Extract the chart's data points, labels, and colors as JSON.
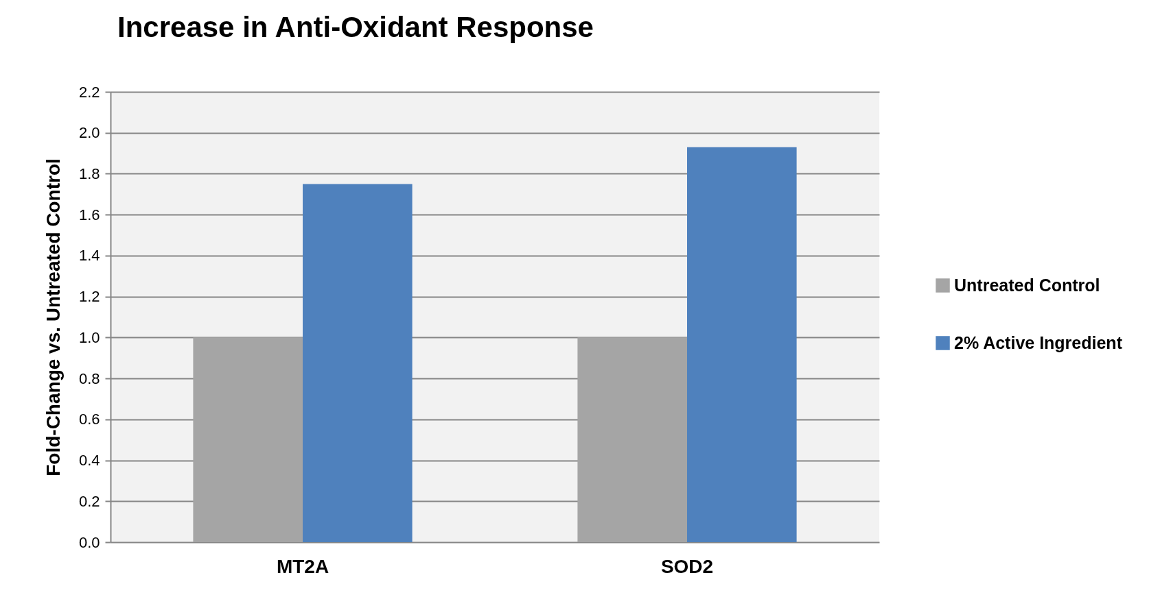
{
  "chart_data": {
    "type": "bar",
    "title": "Increase in Anti-Oxidant Response",
    "ylabel": "Fold-Change vs. Untreated Control",
    "categories": [
      "MT2A",
      "SOD2"
    ],
    "series": [
      {
        "name": "Untreated Control",
        "color": "#a5a5a5",
        "values": [
          1.0,
          1.0
        ]
      },
      {
        "name": "2% Active Ingredient",
        "color": "#4f81bd",
        "values": [
          1.75,
          1.93
        ]
      }
    ],
    "ylim": [
      0,
      2.2
    ],
    "yticks": [
      {
        "value": 0,
        "label": "0.0"
      },
      0.2,
      0.4,
      0.6,
      0.8,
      {
        "value": 1,
        "label": "1.0"
      },
      1.2,
      1.4,
      1.6,
      1.8,
      {
        "value": 2,
        "label": "2.0"
      },
      2.2
    ],
    "grid": "y",
    "legend": "right"
  }
}
